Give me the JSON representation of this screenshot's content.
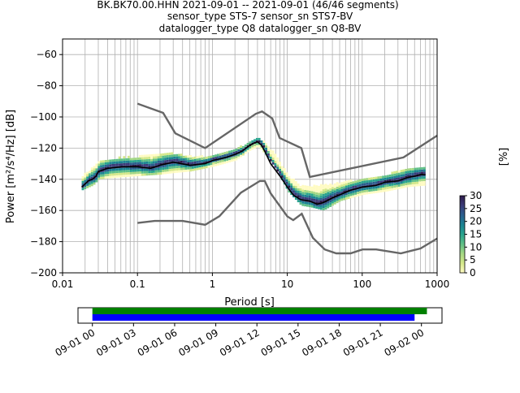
{
  "title_lines": [
    "BK.BK70.00.HHN   2021-09-01 -- 2021-09-01  (46/46 segments)",
    "sensor_type STS-7 sensor_sn STS7-BV",
    "datalogger_type Q8 datalogger_sn Q8-BV"
  ],
  "chart_data": [
    {
      "type": "heatmap",
      "xlabel": "Period [s]",
      "ylabel": "Power [m²/s⁴/Hz] [dB]",
      "xscale": "log",
      "xlim": [
        0.01,
        1000
      ],
      "ylim": [
        -200,
        -50
      ],
      "xticks": [
        0.01,
        0.1,
        1,
        10,
        100,
        1000
      ],
      "xtick_labels": [
        "0.01",
        "0.1",
        "1",
        "10",
        "100",
        "1000"
      ],
      "yticks": [
        -200,
        -180,
        -160,
        -140,
        -120,
        -100,
        -80,
        -60
      ],
      "ytick_labels": [
        "−200",
        "−180",
        "−160",
        "−140",
        "−120",
        "−100",
        "−80",
        "−60"
      ],
      "grid": true,
      "colorbar": {
        "label": "[%]",
        "range": [
          0,
          30
        ],
        "ticks": [
          0,
          5,
          10,
          15,
          20,
          25,
          30
        ]
      },
      "mode_line": {
        "period": [
          0.018,
          0.02,
          0.022,
          0.025,
          0.028,
          0.03,
          0.04,
          0.06,
          0.1,
          0.15,
          0.2,
          0.3,
          0.5,
          0.8,
          1,
          1.5,
          2,
          2.5,
          3,
          3.5,
          4,
          4.5,
          5,
          6,
          8,
          10,
          12,
          15,
          20,
          25,
          30,
          40,
          50,
          70,
          100,
          150,
          200,
          300,
          400,
          500,
          600,
          700
        ],
        "db": [
          -145,
          -143,
          -141,
          -140,
          -138,
          -135,
          -133,
          -132,
          -132,
          -133,
          -131,
          -129,
          -131,
          -130,
          -128,
          -126,
          -124,
          -122,
          -119,
          -117,
          -116,
          -118,
          -122,
          -130,
          -138,
          -145,
          -150,
          -153,
          -154,
          -156,
          -155,
          -152,
          -150,
          -147,
          -145,
          -144,
          -142,
          -141,
          -139,
          -138,
          -137,
          -137
        ]
      },
      "density_band": {
        "period": [
          0.018,
          0.025,
          0.03,
          0.05,
          0.1,
          0.2,
          0.3,
          0.5,
          1,
          2,
          3,
          4,
          5,
          7,
          10,
          15,
          20,
          30,
          50,
          100,
          200,
          400,
          700
        ],
        "upper_db": [
          -138,
          -133,
          -128,
          -127,
          -126,
          -124,
          -124,
          -126,
          -126,
          -121,
          -117,
          -114,
          -117,
          -126,
          -138,
          -145,
          -145,
          -144,
          -143,
          -140,
          -138,
          -133,
          -133
        ],
        "lower_db": [
          -147,
          -144,
          -140,
          -139,
          -138,
          -137,
          -136,
          -135,
          -132,
          -128,
          -122,
          -119,
          -124,
          -134,
          -148,
          -157,
          -158,
          -160,
          -154,
          -150,
          -148,
          -145,
          -144
        ]
      },
      "noise_models": [
        {
          "name": "high",
          "period": [
            0.1,
            0.22,
            0.32,
            0.8,
            3.8,
            4.6,
            6.3,
            7.9,
            15.4,
            20,
            354.8,
            1000
          ],
          "db": [
            -91.5,
            -97.4,
            -110.5,
            -120,
            -98,
            -96.5,
            -101,
            -113.5,
            -120,
            -138.5,
            -126,
            -112
          ]
        },
        {
          "name": "low",
          "period": [
            0.1,
            0.17,
            0.4,
            0.8,
            1.24,
            2.4,
            4.3,
            5,
            6,
            10,
            12,
            15.6,
            21.9,
            31.6,
            45,
            70,
            101,
            154,
            328,
            600,
            1000
          ],
          "db": [
            -168,
            -166.7,
            -166.7,
            -169.2,
            -163.7,
            -148.6,
            -141.1,
            -141.1,
            -149,
            -163.8,
            -166.2,
            -162.1,
            -177.5,
            -185,
            -187.5,
            -187.5,
            -185,
            -185,
            -187.5,
            -184.4,
            -178
          ]
        }
      ]
    },
    {
      "type": "timeline",
      "xlim": [
        "2021-09-01 00:00",
        "2021-09-02 01:30"
      ],
      "xtick_labels": [
        "09-01 00",
        "09-01 03",
        "09-01 06",
        "09-01 09",
        "09-01 12",
        "09-01 15",
        "09-01 18",
        "09-01 21",
        "09-02 00"
      ],
      "xtick_hours": [
        0,
        3,
        6,
        9,
        12,
        15,
        18,
        21,
        24
      ],
      "bars": [
        {
          "color": "#008000",
          "start_hour": 0,
          "end_hour": 24.4
        },
        {
          "color": "#0000ff",
          "start_hour": 0,
          "end_hour": 23.5
        }
      ]
    }
  ]
}
